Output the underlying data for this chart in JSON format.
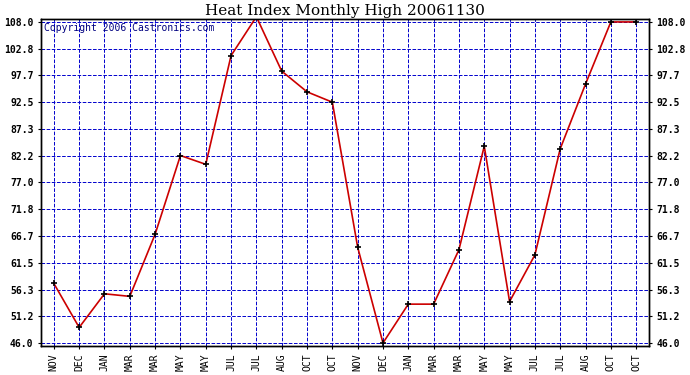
{
  "title": "Heat Index Monthly High 20061130",
  "copyright": "Copyright 2006 Castronics.com",
  "x_labels": [
    "NOV",
    "DEC",
    "JAN",
    "MAR",
    "MAR",
    "MAY",
    "MAY",
    "JUL",
    "JUL",
    "AUG",
    "OCT",
    "OCT",
    "NOV",
    "DEC",
    "JAN",
    "MAR",
    "MAR",
    "MAY",
    "MAY",
    "JUL",
    "JUL",
    "AUG",
    "OCT",
    "OCT"
  ],
  "y_values": [
    57.5,
    49.0,
    55.5,
    55.0,
    67.0,
    82.2,
    80.5,
    101.5,
    109.0,
    98.5,
    94.5,
    92.5,
    64.5,
    46.0,
    53.5,
    53.5,
    64.0,
    84.0,
    54.0,
    63.0,
    83.5,
    96.0,
    108.0,
    108.0
  ],
  "line_color": "#cc0000",
  "marker_color": "#000000",
  "plot_bg_color": "#ffffff",
  "fig_bg_color": "#ffffff",
  "grid_color": "#0000cc",
  "border_color": "#000000",
  "copyright_color": "#000080",
  "y_ticks": [
    46.0,
    51.2,
    56.3,
    61.5,
    66.7,
    71.8,
    77.0,
    82.2,
    87.3,
    92.5,
    97.7,
    102.8,
    108.0
  ],
  "y_min": 46.0,
  "y_max": 108.0,
  "title_fontsize": 11,
  "tick_fontsize": 7,
  "copyright_fontsize": 7
}
